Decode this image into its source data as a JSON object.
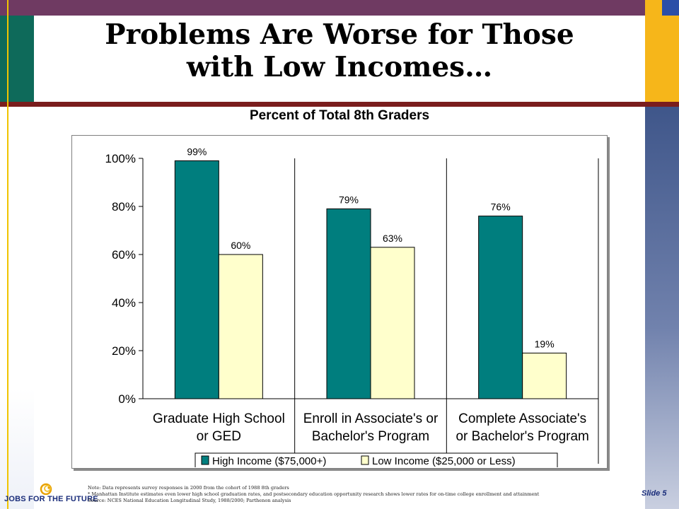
{
  "title_line1": "Problems Are Worse for Those",
  "title_line2": "with Low Incomes…",
  "subtitle": "Percent of Total 8th Graders",
  "footnote": {
    "line1": "Note: Data represents survey responses in 2000 from the cohort of 1988 8th graders",
    "line2": "* Manhattan Institute estimates even lower high school graduation rates, and postsecondary education opportunity research shows lower rates for on-time college enrollment and attainment",
    "line3": "Source: NCES National Education Longitudinal Study, 1988/2000; Parthenon analysis"
  },
  "slide_label": "Slide 5",
  "logo_text": "JOBS FOR THE FUTURE",
  "colors": {
    "high": "#007e7e",
    "low": "#ffffcc"
  },
  "chart_data": {
    "type": "bar",
    "categories": [
      [
        "Graduate High School",
        "or GED"
      ],
      [
        "Enroll in Associate's or",
        "Bachelor's Program"
      ],
      [
        "Complete Associate's",
        "or Bachelor's Program"
      ]
    ],
    "series": [
      {
        "name": "High Income ($75,000+)",
        "values": [
          99,
          79,
          76
        ],
        "labels": [
          "99%",
          "79%",
          "76%"
        ]
      },
      {
        "name": "Low Income ($25,000 or Less)",
        "values": [
          60,
          63,
          19
        ],
        "labels": [
          "60%",
          "63%",
          "19%"
        ]
      }
    ],
    "ylim": [
      0,
      100
    ],
    "yticks": [
      "0%",
      "20%",
      "40%",
      "60%",
      "80%",
      "100%"
    ],
    "grid": "vertical category separators",
    "legend": "bottom",
    "title": "Percent of Total 8th Graders"
  }
}
